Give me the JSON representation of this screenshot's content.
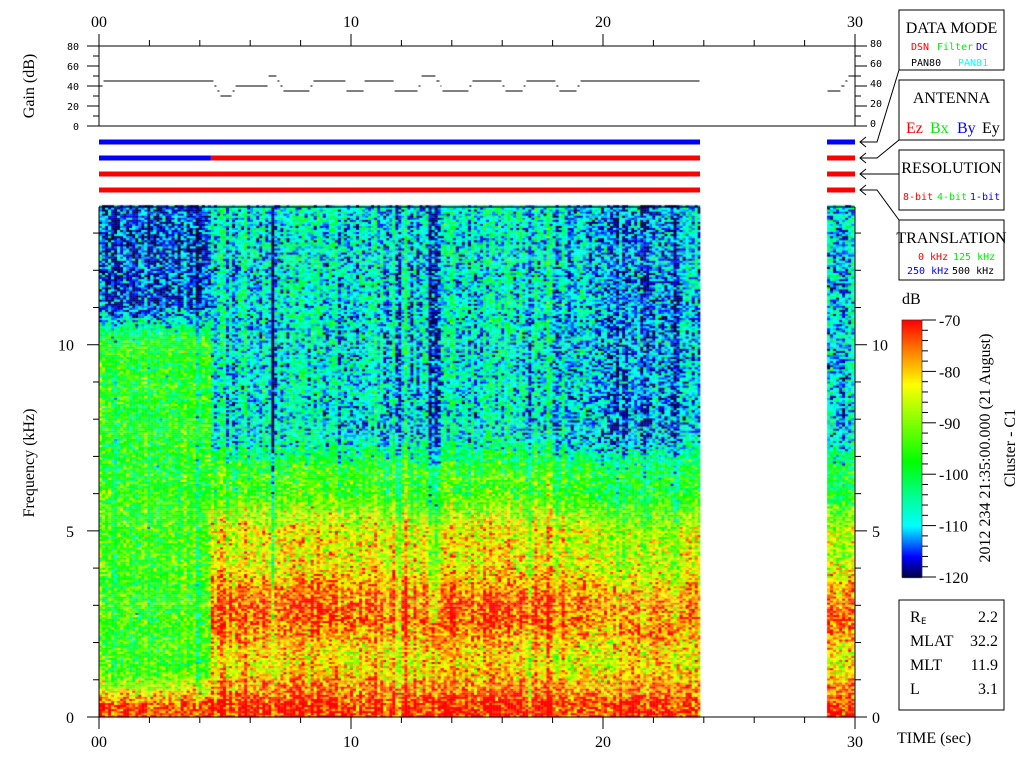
{
  "chart_data": [
    {
      "type": "line",
      "ylabel": "Gain (dB)",
      "xlim": [
        0,
        30
      ],
      "ylim": [
        0,
        80
      ],
      "x_tick_labels": [
        "00",
        "10",
        "20",
        "30"
      ],
      "y_tick_labels": [
        "80",
        "60",
        "40",
        "20",
        "0"
      ],
      "steps": [
        [
          0,
          0.16,
          40
        ],
        [
          0.16,
          4.56,
          45
        ],
        [
          4.56,
          4.68,
          40
        ],
        [
          4.68,
          4.8,
          35
        ],
        [
          4.8,
          5.28,
          30
        ],
        [
          5.28,
          5.4,
          35
        ],
        [
          5.4,
          6.71,
          40
        ],
        [
          6.71,
          7.06,
          50
        ],
        [
          7.06,
          7.18,
          45
        ],
        [
          7.18,
          7.3,
          40
        ],
        [
          7.3,
          8.37,
          35
        ],
        [
          8.37,
          8.49,
          40
        ],
        [
          8.49,
          9.8,
          45
        ],
        [
          9.8,
          10.52,
          35
        ],
        [
          10.52,
          11.71,
          45
        ],
        [
          11.71,
          12.66,
          35
        ],
        [
          12.66,
          12.78,
          40
        ],
        [
          12.78,
          13.37,
          50
        ],
        [
          13.37,
          13.53,
          45
        ],
        [
          13.53,
          13.61,
          40
        ],
        [
          13.61,
          14.68,
          35
        ],
        [
          14.68,
          14.8,
          40
        ],
        [
          14.8,
          15.99,
          45
        ],
        [
          15.99,
          16.11,
          40
        ],
        [
          16.11,
          16.83,
          35
        ],
        [
          16.83,
          16.94,
          40
        ],
        [
          16.94,
          18.13,
          45
        ],
        [
          18.13,
          18.25,
          40
        ],
        [
          18.25,
          18.97,
          35
        ],
        [
          18.97,
          19.09,
          40
        ],
        [
          19.09,
          23.85,
          45
        ],
        [
          28.89,
          29.44,
          35
        ],
        [
          29.44,
          29.6,
          40
        ],
        [
          29.6,
          29.72,
          45
        ],
        [
          29.72,
          30,
          50
        ]
      ]
    },
    {
      "type": "status-bars",
      "rows": [
        {
          "name": "DATA MODE",
          "segments": [
            [
              0,
              23.85,
              "DC"
            ],
            [
              28.89,
              30,
              "DC"
            ]
          ]
        },
        {
          "name": "ANTENNA",
          "segments": [
            [
              0,
              4.44,
              "By"
            ],
            [
              4.44,
              23.85,
              "Ez"
            ],
            [
              28.89,
              30,
              "Ez"
            ]
          ]
        },
        {
          "name": "RESOLUTION",
          "segments": [
            [
              0,
              23.85,
              "8-bit"
            ],
            [
              28.89,
              30,
              "8-bit"
            ]
          ]
        },
        {
          "name": "TRANSLATION",
          "segments": [
            [
              0,
              23.85,
              "0 kHz"
            ],
            [
              28.89,
              30,
              "0 kHz"
            ]
          ]
        }
      ]
    },
    {
      "type": "heatmap",
      "ylabel": "Frequency (kHz)",
      "xlabel": "TIME (sec)",
      "xlim": [
        0,
        30
      ],
      "ylim": [
        0,
        13.7
      ],
      "x_tick_labels": [
        "00",
        "10",
        "20",
        "30"
      ],
      "y_tick_labels": [
        "10",
        "5",
        "0"
      ],
      "colorbar": {
        "label": "dB",
        "range": [
          -120,
          -70
        ],
        "tick_labels": [
          "-70",
          "-80",
          "-90",
          "-100",
          "-110",
          "-120"
        ]
      },
      "data_segments_sec": [
        [
          0,
          23.85
        ],
        [
          28.89,
          30
        ]
      ],
      "approx_levels_db": [
        {
          "t": [
            0,
            4.44
          ],
          "bands_khz_db": [
            [
              0,
              0.7,
              -72
            ],
            [
              0.7,
              6,
              -95
            ],
            [
              6,
              10.5,
              -97
            ],
            [
              10.5,
              13.7,
              -115
            ]
          ]
        },
        {
          "t": [
            4.44,
            23.85
          ],
          "bands_khz_db": [
            [
              0,
              0.8,
              -71
            ],
            [
              0.8,
              2.1,
              -82
            ],
            [
              2.1,
              3.6,
              -74
            ],
            [
              3.6,
              5.5,
              -83
            ],
            [
              5.5,
              7,
              -95
            ],
            [
              7,
              13.7,
              -108
            ]
          ]
        },
        {
          "t": [
            28.89,
            30
          ],
          "bands_khz_db": [
            [
              0,
              0.8,
              -72
            ],
            [
              0.8,
              2.1,
              -84
            ],
            [
              2.1,
              3.6,
              -75
            ],
            [
              3.6,
              5.5,
              -88
            ],
            [
              5.5,
              7,
              -100
            ],
            [
              7,
              13.7,
              -110
            ]
          ]
        }
      ],
      "dark_bands_sec": [
        [
          6.8,
          7.0
        ],
        [
          13.1,
          13.5
        ],
        [
          20.4,
          23.0
        ]
      ]
    }
  ],
  "legend": {
    "data_mode": {
      "title": "DATA MODE",
      "items": [
        {
          "t": "DSN",
          "c": "#ff0000"
        },
        {
          "t": "Filter",
          "c": "#00ee00"
        },
        {
          "t": "DC",
          "c": "#0000ff"
        },
        {
          "t": "PAN80",
          "c": "#000000"
        },
        {
          "t": "PAN81",
          "c": "#00ffff"
        }
      ]
    },
    "antenna": {
      "title": "ANTENNA",
      "items": [
        {
          "t": "Ez",
          "c": "#ff0000"
        },
        {
          "t": "Bx",
          "c": "#00ee00"
        },
        {
          "t": "By",
          "c": "#0000ff"
        },
        {
          "t": "Ey",
          "c": "#000000"
        }
      ]
    },
    "resolution": {
      "title": "RESOLUTION",
      "items": [
        {
          "t": "8-bit",
          "c": "#ff0000"
        },
        {
          "t": "4-bit",
          "c": "#00ee00"
        },
        {
          "t": "1-bit",
          "c": "#0000ff"
        }
      ]
    },
    "translation": {
      "title": "TRANSLATION",
      "items": [
        {
          "t": "0 kHz",
          "c": "#ff0000"
        },
        {
          "t": "125 kHz",
          "c": "#00ee00"
        },
        {
          "t": "250 kHz",
          "c": "#0000ff"
        },
        {
          "t": "500 kHz",
          "c": "#000000"
        }
      ]
    }
  },
  "colors": {
    "DC": "#0000ff",
    "By": "#0000ff",
    "Ez": "#ff0000",
    "8-bit": "#ff0000",
    "0 kHz": "#ff0000"
  },
  "info": {
    "date_line": "2012 234 21:35:00.000 (21 August)",
    "spacecraft": "Cluster - C1",
    "rows": [
      {
        "k": "R",
        "sub": "E",
        "v": "2.2"
      },
      {
        "k": "MLAT",
        "v": "32.2"
      },
      {
        "k": "MLT",
        "v": "11.9"
      },
      {
        "k": "L",
        "v": "3.1"
      }
    ]
  }
}
